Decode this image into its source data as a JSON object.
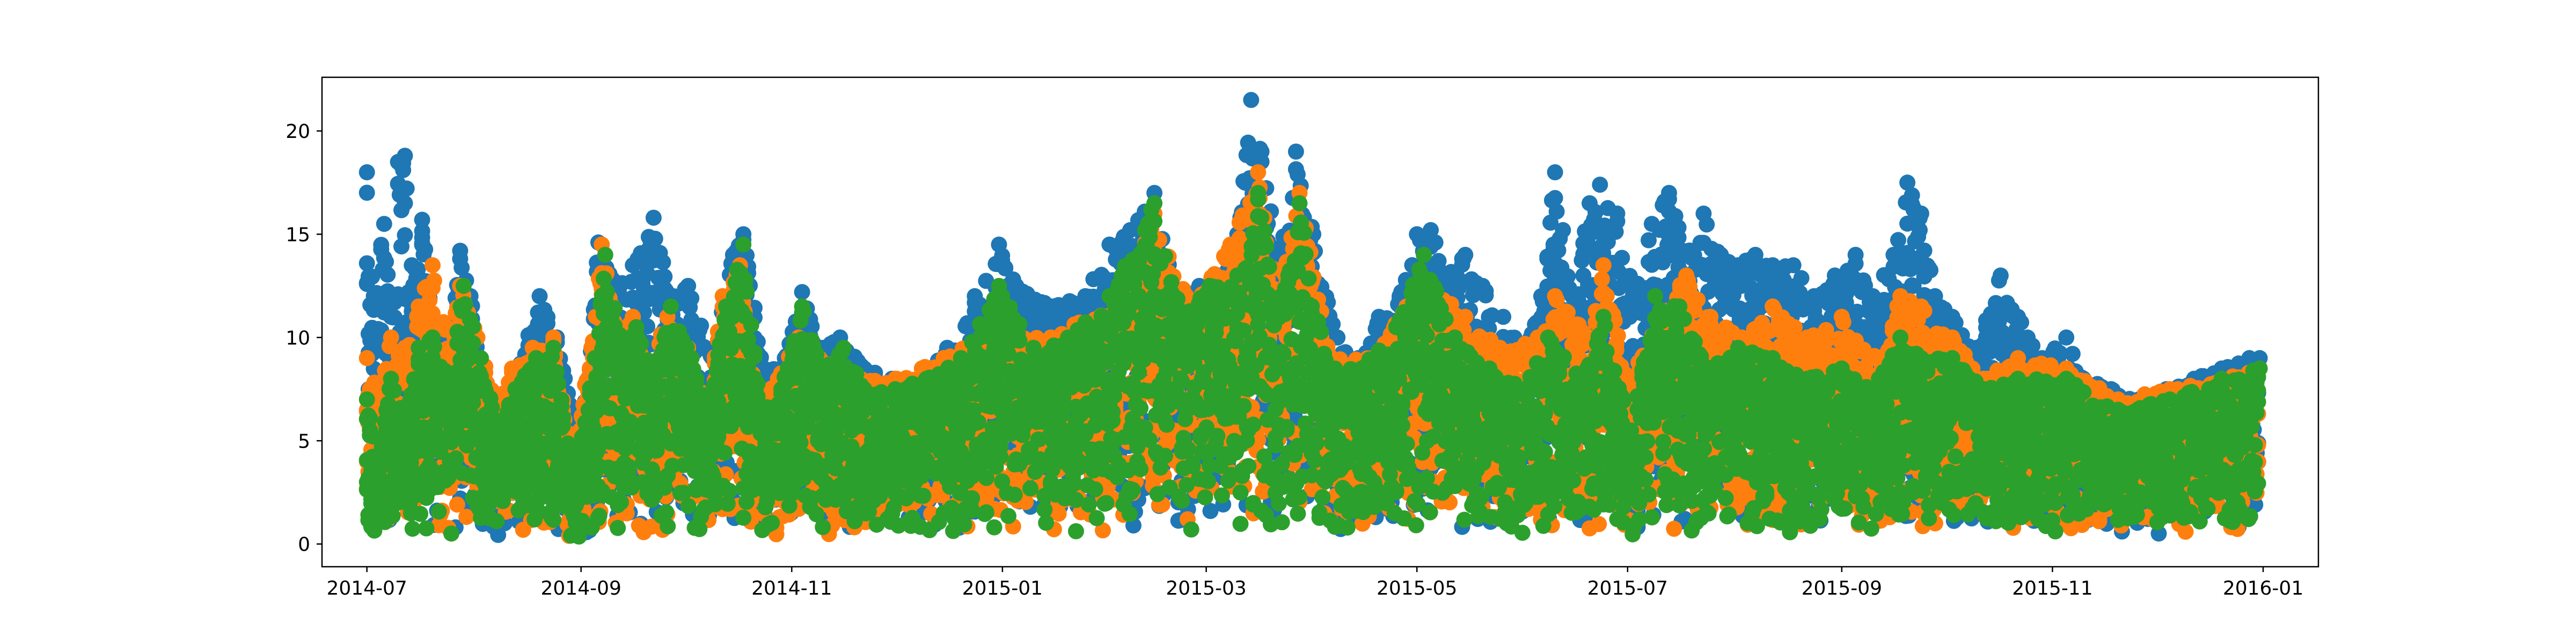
{
  "chart_data": {
    "type": "scatter",
    "title": "",
    "xlabel": "",
    "ylabel": "",
    "x_range": [
      "2014-06-18",
      "2016-01-17"
    ],
    "ylim": [
      -1.1,
      22.6
    ],
    "x_ticks": [
      "2014-07",
      "2014-09",
      "2014-11",
      "2015-01",
      "2015-03",
      "2015-05",
      "2015-07",
      "2015-09",
      "2015-11",
      "2016-01"
    ],
    "y_ticks": [
      "0",
      "5",
      "10",
      "15",
      "20"
    ],
    "y_tick_values": [
      0,
      5,
      10,
      15,
      20
    ],
    "grid": false,
    "legend": "none",
    "point_size": 5,
    "series": [
      {
        "color": "#1f77b4",
        "points": [
          [
            "2014-07-01",
            18.0
          ],
          [
            "2014-07-03",
            12.0
          ],
          [
            "2014-07-06",
            15.5
          ],
          [
            "2014-07-08",
            11.0
          ],
          [
            "2014-07-10",
            18.5
          ],
          [
            "2014-07-12",
            18.8
          ],
          [
            "2014-07-14",
            13.5
          ],
          [
            "2014-07-17",
            15.7
          ],
          [
            "2014-07-20",
            11.0
          ],
          [
            "2014-07-24",
            10.0
          ],
          [
            "2014-07-28",
            14.2
          ],
          [
            "2014-07-31",
            12.0
          ],
          [
            "2014-08-04",
            8.0
          ],
          [
            "2014-08-08",
            6.5
          ],
          [
            "2014-08-14",
            8.5
          ],
          [
            "2014-08-20",
            12.0
          ],
          [
            "2014-08-25",
            10.0
          ],
          [
            "2014-08-30",
            6.0
          ],
          [
            "2014-09-03",
            8.0
          ],
          [
            "2014-09-06",
            14.6
          ],
          [
            "2014-09-12",
            12.5
          ],
          [
            "2014-09-16",
            13.5
          ],
          [
            "2014-09-22",
            15.8
          ],
          [
            "2014-09-27",
            12.0
          ],
          [
            "2014-10-02",
            12.5
          ],
          [
            "2014-10-09",
            9.0
          ],
          [
            "2014-10-15",
            14.0
          ],
          [
            "2014-10-18",
            15.0
          ],
          [
            "2014-10-24",
            8.5
          ],
          [
            "2014-10-30",
            9.0
          ],
          [
            "2014-11-04",
            12.2
          ],
          [
            "2014-11-10",
            9.5
          ],
          [
            "2014-11-15",
            10.0
          ],
          [
            "2014-11-22",
            8.5
          ],
          [
            "2014-11-30",
            8.0
          ],
          [
            "2014-12-08",
            8.0
          ],
          [
            "2014-12-16",
            9.5
          ],
          [
            "2014-12-24",
            12.0
          ],
          [
            "2014-12-31",
            14.5
          ],
          [
            "2015-01-05",
            12.5
          ],
          [
            "2015-01-15",
            11.5
          ],
          [
            "2015-01-25",
            12.0
          ],
          [
            "2015-02-01",
            14.5
          ],
          [
            "2015-02-07",
            15.2
          ],
          [
            "2015-02-14",
            17.0
          ],
          [
            "2015-02-20",
            12.0
          ],
          [
            "2015-02-27",
            12.5
          ],
          [
            "2015-03-05",
            13.0
          ],
          [
            "2015-03-10",
            15.0
          ],
          [
            "2015-03-14",
            21.5
          ],
          [
            "2015-03-17",
            19.0
          ],
          [
            "2015-03-22",
            14.0
          ],
          [
            "2015-03-27",
            19.0
          ],
          [
            "2015-04-01",
            15.0
          ],
          [
            "2015-04-08",
            10.0
          ],
          [
            "2015-04-14",
            9.0
          ],
          [
            "2015-04-20",
            11.0
          ],
          [
            "2015-04-26",
            12.0
          ],
          [
            "2015-05-01",
            15.0
          ],
          [
            "2015-05-05",
            15.2
          ],
          [
            "2015-05-10",
            13.0
          ],
          [
            "2015-05-15",
            14.0
          ],
          [
            "2015-05-20",
            12.5
          ],
          [
            "2015-05-26",
            11.0
          ],
          [
            "2015-06-01",
            9.5
          ],
          [
            "2015-06-06",
            12.0
          ],
          [
            "2015-06-10",
            18.0
          ],
          [
            "2015-06-15",
            12.0
          ],
          [
            "2015-06-20",
            16.5
          ],
          [
            "2015-06-23",
            17.4
          ],
          [
            "2015-06-28",
            16.0
          ],
          [
            "2015-07-03",
            12.0
          ],
          [
            "2015-07-08",
            15.5
          ],
          [
            "2015-07-13",
            17.0
          ],
          [
            "2015-07-18",
            14.0
          ],
          [
            "2015-07-23",
            16.0
          ],
          [
            "2015-07-28",
            14.0
          ],
          [
            "2015-08-02",
            13.5
          ],
          [
            "2015-08-07",
            14.0
          ],
          [
            "2015-08-12",
            13.5
          ],
          [
            "2015-08-18",
            13.5
          ],
          [
            "2015-08-24",
            12.0
          ],
          [
            "2015-08-30",
            13.0
          ],
          [
            "2015-09-05",
            14.0
          ],
          [
            "2015-09-10",
            12.0
          ],
          [
            "2015-09-16",
            14.0
          ],
          [
            "2015-09-20",
            17.5
          ],
          [
            "2015-09-24",
            16.0
          ],
          [
            "2015-09-28",
            12.0
          ],
          [
            "2015-10-03",
            11.0
          ],
          [
            "2015-10-10",
            9.5
          ],
          [
            "2015-10-17",
            13.0
          ],
          [
            "2015-10-22",
            11.0
          ],
          [
            "2015-10-29",
            9.0
          ],
          [
            "2015-11-05",
            10.0
          ],
          [
            "2015-11-10",
            8.0
          ],
          [
            "2015-11-18",
            7.5
          ],
          [
            "2015-11-26",
            7.0
          ],
          [
            "2015-12-04",
            7.5
          ],
          [
            "2015-12-12",
            8.0
          ],
          [
            "2015-12-20",
            8.5
          ],
          [
            "2015-12-28",
            9.0
          ],
          [
            "2015-12-31",
            9.0
          ]
        ]
      },
      {
        "color": "#ff7f0e",
        "points": [
          [
            "2014-07-01",
            9.0
          ],
          [
            "2014-07-04",
            7.5
          ],
          [
            "2014-07-08",
            10.0
          ],
          [
            "2014-07-12",
            9.5
          ],
          [
            "2014-07-16",
            11.5
          ],
          [
            "2014-07-20",
            13.5
          ],
          [
            "2014-07-25",
            9.5
          ],
          [
            "2014-07-28",
            12.5
          ],
          [
            "2014-08-02",
            10.0
          ],
          [
            "2014-08-07",
            7.0
          ],
          [
            "2014-08-12",
            8.5
          ],
          [
            "2014-08-18",
            9.5
          ],
          [
            "2014-08-24",
            10.0
          ],
          [
            "2014-08-29",
            4.5
          ],
          [
            "2014-09-04",
            9.5
          ],
          [
            "2014-09-07",
            14.5
          ],
          [
            "2014-09-12",
            10.0
          ],
          [
            "2014-09-16",
            11.0
          ],
          [
            "2014-09-20",
            8.5
          ],
          [
            "2014-09-26",
            11.0
          ],
          [
            "2014-10-02",
            9.5
          ],
          [
            "2014-10-07",
            7.0
          ],
          [
            "2014-10-12",
            12.0
          ],
          [
            "2014-10-17",
            13.5
          ],
          [
            "2014-10-22",
            7.0
          ],
          [
            "2014-10-28",
            8.0
          ],
          [
            "2014-11-03",
            10.0
          ],
          [
            "2014-11-09",
            9.0
          ],
          [
            "2014-11-15",
            8.5
          ],
          [
            "2014-11-21",
            8.0
          ],
          [
            "2014-12-01",
            8.0
          ],
          [
            "2014-12-15",
            9.0
          ],
          [
            "2014-12-31",
            10.5
          ],
          [
            "2015-01-15",
            10.0
          ],
          [
            "2015-02-05",
            12.0
          ],
          [
            "2015-02-14",
            16.0
          ],
          [
            "2015-02-25",
            11.5
          ],
          [
            "2015-03-08",
            14.5
          ],
          [
            "2015-03-16",
            18.0
          ],
          [
            "2015-03-22",
            12.0
          ],
          [
            "2015-03-28",
            17.0
          ],
          [
            "2015-04-06",
            9.0
          ],
          [
            "2015-04-18",
            9.0
          ],
          [
            "2015-04-28",
            11.5
          ],
          [
            "2015-05-05",
            12.5
          ],
          [
            "2015-05-15",
            11.0
          ],
          [
            "2015-05-25",
            9.5
          ],
          [
            "2015-06-05",
            10.0
          ],
          [
            "2015-06-10",
            12.0
          ],
          [
            "2015-06-20",
            10.0
          ],
          [
            "2015-06-24",
            13.5
          ],
          [
            "2015-07-01",
            8.0
          ],
          [
            "2015-07-10",
            11.0
          ],
          [
            "2015-07-18",
            13.0
          ],
          [
            "2015-07-25",
            11.0
          ],
          [
            "2015-08-03",
            10.0
          ],
          [
            "2015-08-12",
            11.5
          ],
          [
            "2015-08-22",
            10.0
          ],
          [
            "2015-09-01",
            11.0
          ],
          [
            "2015-09-10",
            9.0
          ],
          [
            "2015-09-18",
            12.0
          ],
          [
            "2015-09-24",
            11.5
          ],
          [
            "2015-10-03",
            10.0
          ],
          [
            "2015-10-12",
            8.0
          ],
          [
            "2015-10-22",
            9.0
          ],
          [
            "2015-11-05",
            8.5
          ],
          [
            "2015-11-20",
            7.0
          ],
          [
            "2015-12-05",
            7.5
          ],
          [
            "2015-12-20",
            8.0
          ],
          [
            "2015-12-31",
            8.5
          ]
        ]
      },
      {
        "color": "#2ca02c",
        "points": [
          [
            "2014-07-01",
            7.0
          ],
          [
            "2014-07-04",
            4.0
          ],
          [
            "2014-07-08",
            8.0
          ],
          [
            "2014-07-12",
            6.0
          ],
          [
            "2014-07-16",
            9.5
          ],
          [
            "2014-07-20",
            10.0
          ],
          [
            "2014-07-25",
            8.0
          ],
          [
            "2014-07-29",
            12.5
          ],
          [
            "2014-08-03",
            9.0
          ],
          [
            "2014-08-08",
            5.5
          ],
          [
            "2014-08-13",
            7.5
          ],
          [
            "2014-08-19",
            9.0
          ],
          [
            "2014-08-24",
            9.5
          ],
          [
            "2014-08-30",
            3.0
          ],
          [
            "2014-09-05",
            9.0
          ],
          [
            "2014-09-08",
            14.0
          ],
          [
            "2014-09-13",
            9.5
          ],
          [
            "2014-09-17",
            10.5
          ],
          [
            "2014-09-22",
            8.0
          ],
          [
            "2014-09-27",
            11.5
          ],
          [
            "2014-10-03",
            9.0
          ],
          [
            "2014-10-08",
            6.5
          ],
          [
            "2014-10-13",
            11.5
          ],
          [
            "2014-10-18",
            14.5
          ],
          [
            "2014-10-23",
            6.5
          ],
          [
            "2014-10-29",
            7.5
          ],
          [
            "2014-11-04",
            11.5
          ],
          [
            "2014-11-10",
            8.5
          ],
          [
            "2014-11-16",
            9.5
          ],
          [
            "2014-11-22",
            7.5
          ],
          [
            "2014-12-01",
            7.5
          ],
          [
            "2014-12-10",
            8.0
          ],
          [
            "2014-12-20",
            9.0
          ],
          [
            "2014-12-31",
            12.5
          ],
          [
            "2015-01-10",
            9.5
          ],
          [
            "2015-01-20",
            10.0
          ],
          [
            "2015-02-01",
            12.0
          ],
          [
            "2015-02-14",
            16.5
          ],
          [
            "2015-02-22",
            11.0
          ],
          [
            "2015-03-02",
            12.5
          ],
          [
            "2015-03-10",
            13.0
          ],
          [
            "2015-03-16",
            17.0
          ],
          [
            "2015-03-22",
            11.5
          ],
          [
            "2015-03-28",
            16.5
          ],
          [
            "2015-04-05",
            8.5
          ],
          [
            "2015-04-15",
            8.5
          ],
          [
            "2015-04-25",
            10.5
          ],
          [
            "2015-05-03",
            14.0
          ],
          [
            "2015-05-12",
            10.0
          ],
          [
            "2015-05-22",
            8.5
          ],
          [
            "2015-06-01",
            7.5
          ],
          [
            "2015-06-08",
            10.0
          ],
          [
            "2015-06-18",
            8.0
          ],
          [
            "2015-06-24",
            11.0
          ],
          [
            "2015-07-02",
            5.5
          ],
          [
            "2015-07-09",
            12.0
          ],
          [
            "2015-07-16",
            11.5
          ],
          [
            "2015-07-24",
            8.5
          ],
          [
            "2015-08-02",
            9.5
          ],
          [
            "2015-08-12",
            9.0
          ],
          [
            "2015-08-22",
            8.0
          ],
          [
            "2015-09-01",
            8.5
          ],
          [
            "2015-09-10",
            7.5
          ],
          [
            "2015-09-18",
            10.0
          ],
          [
            "2015-09-24",
            9.0
          ],
          [
            "2015-10-03",
            9.0
          ],
          [
            "2015-10-12",
            7.5
          ],
          [
            "2015-10-22",
            8.0
          ],
          [
            "2015-11-05",
            8.0
          ],
          [
            "2015-11-20",
            6.5
          ],
          [
            "2015-12-05",
            7.0
          ],
          [
            "2015-12-20",
            8.0
          ],
          [
            "2015-12-31",
            8.5
          ]
        ]
      }
    ]
  }
}
